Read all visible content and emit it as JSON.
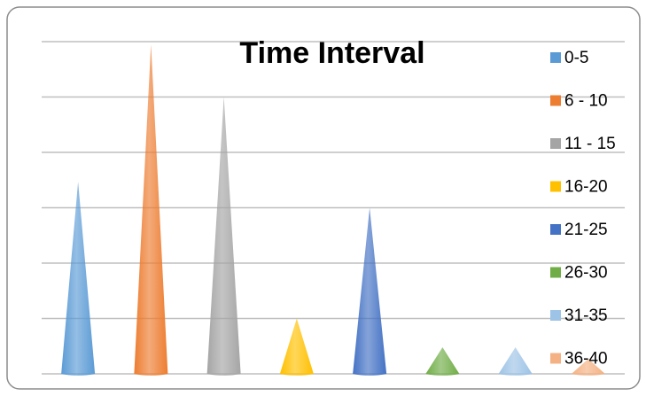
{
  "chart_data": {
    "type": "cone",
    "title": "Time Interval",
    "series": [
      {
        "name": "0-5",
        "color": "#5b9bd5",
        "values": [
          3.47
        ]
      },
      {
        "name": "6 - 10",
        "color": "#ed7d31",
        "values": [
          5.95
        ]
      },
      {
        "name": "11 - 15",
        "color": "#a5a5a5",
        "values": [
          5.0
        ]
      },
      {
        "name": "16-20",
        "color": "#ffc000",
        "values": [
          1.0
        ]
      },
      {
        "name": "21-25",
        "color": "#4472c4",
        "values": [
          3.0
        ]
      },
      {
        "name": "26-30",
        "color": "#70ad47",
        "values": [
          0.48
        ]
      },
      {
        "name": "31-35",
        "color": "#9dc3e6",
        "values": [
          0.48
        ]
      },
      {
        "name": "36-40",
        "color": "#f4b183",
        "values": [
          0.27
        ]
      }
    ],
    "ylim": [
      0,
      6
    ],
    "yticks": [
      0,
      1,
      2,
      3,
      4,
      5,
      6
    ],
    "grid": true,
    "legend": "right"
  }
}
